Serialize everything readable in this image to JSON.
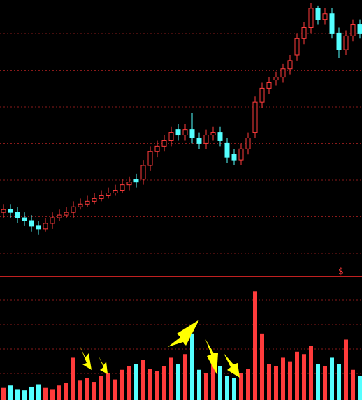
{
  "chart_data": [
    {
      "type": "candlestick",
      "annotation": "$",
      "ylim": [
        0,
        100
      ],
      "grid": true,
      "up_color": "#ff3b3b",
      "down_color": "#54ffff",
      "open": [
        23,
        24,
        23,
        21,
        20,
        18,
        17,
        19,
        21,
        22,
        23,
        25,
        26,
        27,
        28,
        29,
        30,
        31,
        33,
        35,
        35,
        40,
        45,
        47,
        49,
        53,
        51,
        53,
        50,
        48,
        51,
        52,
        48,
        44,
        42,
        46,
        52,
        63,
        68,
        71,
        72,
        75,
        80,
        86,
        90,
        97,
        93,
        95,
        88,
        82,
        87,
        91
      ],
      "close": [
        24,
        23,
        21,
        20,
        18,
        17,
        19,
        21,
        22,
        23,
        25,
        26,
        27,
        28,
        29,
        30,
        31,
        33,
        34,
        34,
        40,
        45,
        47,
        49,
        52,
        51,
        53,
        50,
        48,
        51,
        52,
        49,
        43,
        42,
        46,
        50,
        63,
        68,
        70,
        72,
        75,
        78,
        86,
        90,
        97,
        93,
        95,
        88,
        82,
        87,
        91,
        88
      ],
      "high": [
        26,
        26,
        25,
        23,
        22,
        20,
        21,
        23,
        24,
        25,
        27,
        28,
        29,
        30,
        31,
        32,
        33,
        35,
        36,
        37,
        42,
        47,
        49,
        51,
        54,
        55,
        55,
        59,
        52,
        53,
        54,
        54,
        50,
        46,
        48,
        52,
        65,
        70,
        72,
        74,
        77,
        80,
        88,
        92,
        99,
        98,
        97,
        97,
        90,
        89,
        93,
        93
      ],
      "low": [
        21,
        21,
        19,
        18,
        16,
        15,
        16,
        17,
        20,
        21,
        21,
        24,
        25,
        26,
        27,
        28,
        29,
        30,
        31,
        32,
        33,
        38,
        43,
        45,
        47,
        49,
        49,
        48,
        46,
        46,
        49,
        47,
        41,
        40,
        40,
        44,
        50,
        61,
        66,
        69,
        70,
        73,
        78,
        84,
        88,
        91,
        91,
        86,
        79,
        80,
        85,
        86
      ]
    },
    {
      "type": "bar",
      "ylim": [
        0,
        100
      ],
      "grid": true,
      "values": [
        10,
        12,
        9,
        8,
        11,
        13,
        10,
        9,
        12,
        14,
        35,
        16,
        18,
        15,
        20,
        22,
        17,
        25,
        28,
        30,
        33,
        26,
        24,
        28,
        35,
        30,
        38,
        55,
        25,
        22,
        30,
        28,
        20,
        18,
        22,
        26,
        90,
        55,
        30,
        28,
        35,
        32,
        40,
        38,
        45,
        30,
        28,
        35,
        30,
        50,
        25,
        20
      ]
    }
  ]
}
